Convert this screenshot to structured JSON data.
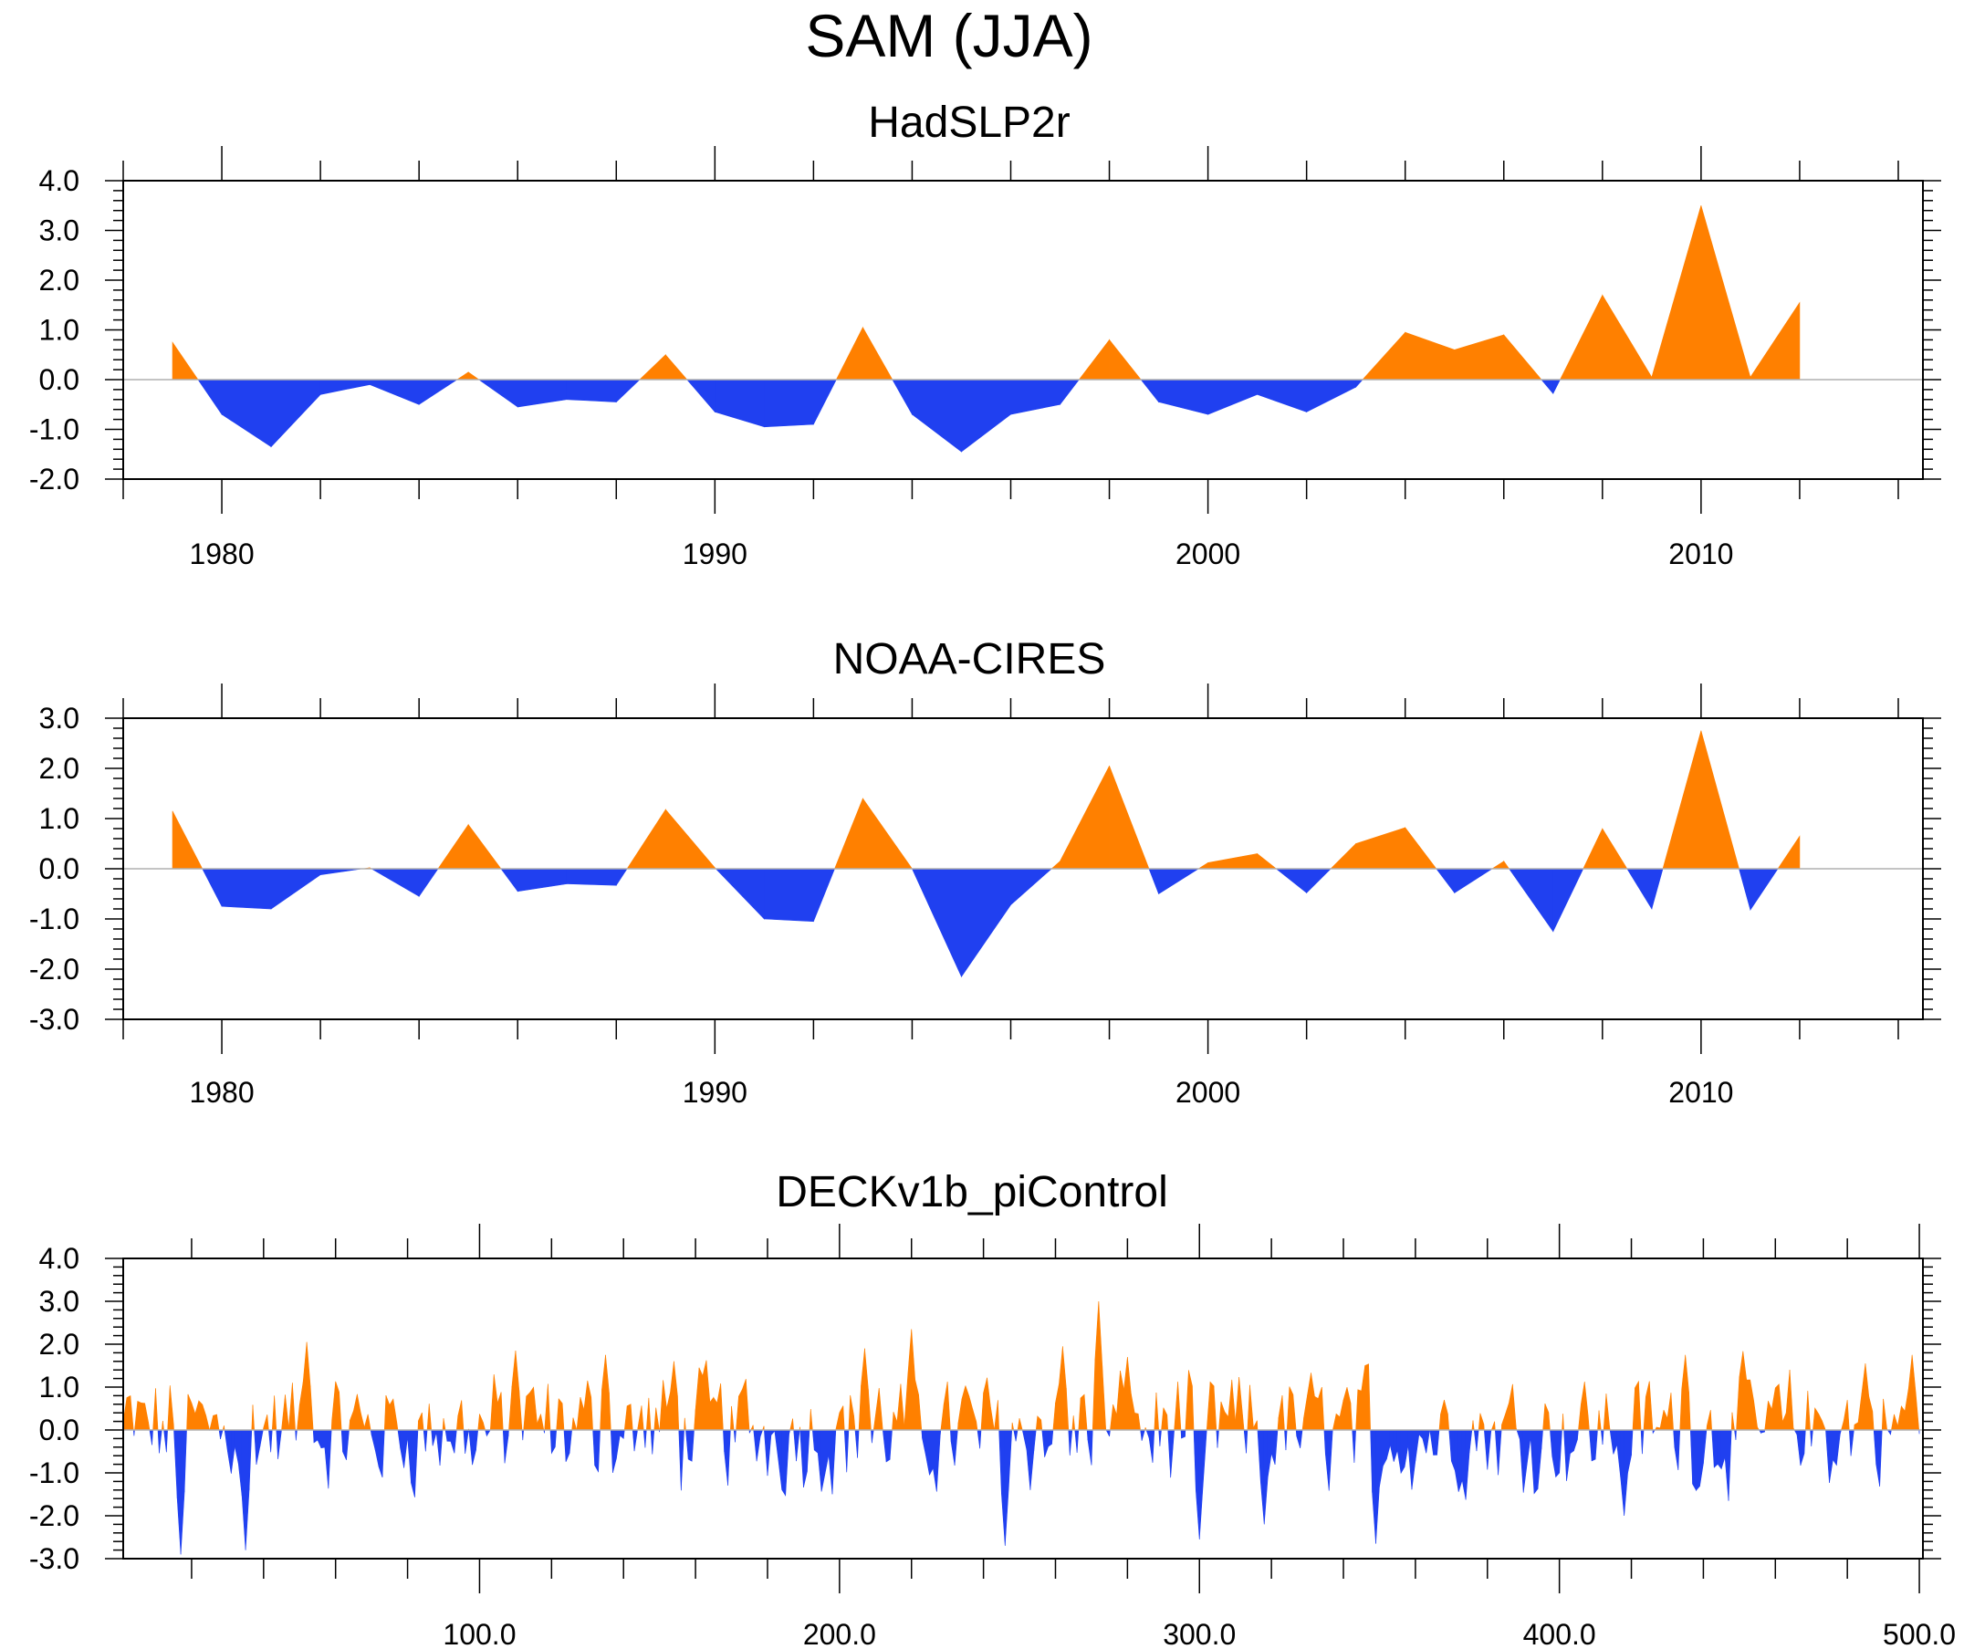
{
  "figure": {
    "title": "SAM (JJA)"
  },
  "colors": {
    "positive": "#ff8000",
    "negative": "#2040f0",
    "axis": "#000000",
    "zero_line": "#b0b0b0"
  },
  "chart_data": [
    {
      "type": "area",
      "title": "HadSLP2r",
      "xlabel": "",
      "ylabel": "",
      "xlim": [
        1978.0,
        2014.5
      ],
      "ylim": [
        -2.0,
        4.0
      ],
      "x_major_ticks": [
        1980,
        1990,
        2000,
        2010
      ],
      "x_tick_labels": [
        "1980",
        "1990",
        "2000",
        "2010"
      ],
      "y_major_ticks": [
        -2.0,
        -1.0,
        0.0,
        1.0,
        2.0,
        3.0,
        4.0
      ],
      "y_tick_labels": [
        "-2.0",
        "-1.0",
        "0.0",
        "1.0",
        "2.0",
        "3.0",
        "4.0"
      ],
      "x": [
        1979,
        1980,
        1981,
        1982,
        1983,
        1984,
        1985,
        1986,
        1987,
        1988,
        1989,
        1990,
        1991,
        1992,
        1993,
        1994,
        1995,
        1996,
        1997,
        1998,
        1999,
        2000,
        2001,
        2002,
        2003,
        2004,
        2005,
        2006,
        2007,
        2008,
        2009,
        2010,
        2011,
        2012
      ],
      "values": [
        0.75,
        -0.7,
        -1.35,
        -0.3,
        -0.1,
        -0.5,
        0.15,
        -0.55,
        -0.4,
        -0.45,
        0.5,
        -0.65,
        -0.95,
        -0.9,
        1.05,
        -0.7,
        -1.45,
        -0.7,
        -0.5,
        0.8,
        -0.45,
        -0.7,
        -0.3,
        -0.65,
        -0.15,
        0.95,
        0.6,
        0.9,
        -0.28,
        1.7,
        0.05,
        3.5,
        0.05,
        1.55
      ]
    },
    {
      "type": "area",
      "title": "NOAA-CIRES",
      "xlabel": "",
      "ylabel": "",
      "xlim": [
        1978.0,
        2014.5
      ],
      "ylim": [
        -3.0,
        3.0
      ],
      "x_major_ticks": [
        1980,
        1990,
        2000,
        2010
      ],
      "x_tick_labels": [
        "1980",
        "1990",
        "2000",
        "2010"
      ],
      "y_major_ticks": [
        -3.0,
        -2.0,
        -1.0,
        0.0,
        1.0,
        2.0,
        3.0
      ],
      "y_tick_labels": [
        "-3.0",
        "-2.0",
        "-1.0",
        "0.0",
        "1.0",
        "2.0",
        "3.0"
      ],
      "x": [
        1979,
        1980,
        1981,
        1982,
        1983,
        1984,
        1985,
        1986,
        1987,
        1988,
        1989,
        1990,
        1991,
        1992,
        1993,
        1994,
        1995,
        1996,
        1997,
        1998,
        1999,
        2000,
        2001,
        2002,
        2003,
        2004,
        2005,
        2006,
        2007,
        2008,
        2009,
        2010,
        2011,
        2012
      ],
      "values": [
        1.15,
        -0.75,
        -0.8,
        -0.12,
        0.02,
        -0.55,
        0.88,
        -0.45,
        -0.3,
        -0.33,
        1.18,
        0.02,
        -1.0,
        -1.05,
        1.4,
        0.0,
        -2.15,
        -0.72,
        0.15,
        2.05,
        -0.5,
        0.12,
        0.3,
        -0.48,
        0.5,
        0.82,
        -0.48,
        0.15,
        -1.25,
        0.8,
        -0.8,
        2.75,
        -0.82,
        0.65
      ]
    },
    {
      "type": "area",
      "title": "DECKv1b_piControl",
      "xlabel": "",
      "ylabel": "",
      "xlim": [
        1,
        501
      ],
      "ylim": [
        -3.0,
        4.0
      ],
      "x_major_ticks": [
        100.0,
        200.0,
        300.0,
        400.0,
        500.0
      ],
      "x_tick_labels": [
        "100.0",
        "200.0",
        "300.0",
        "400.0",
        "500.0"
      ],
      "y_major_ticks": [
        -3.0,
        -2.0,
        -1.0,
        0.0,
        1.0,
        2.0,
        3.0,
        4.0
      ],
      "y_tick_labels": [
        "-3.0",
        "-2.0",
        "-1.0",
        "0.0",
        "1.0",
        "2.0",
        "3.0",
        "4.0"
      ],
      "x_start": 1,
      "x_step": 1,
      "n_points": 500,
      "noise_description": "500-year control run index, values roughly between -2.8 and 3.0 (estimated series)",
      "peaks": [
        {
          "x": 17,
          "v": -2.9
        },
        {
          "x": 35,
          "v": -2.8
        },
        {
          "x": 52,
          "v": 2.05
        },
        {
          "x": 110,
          "v": 1.85
        },
        {
          "x": 135,
          "v": 1.75
        },
        {
          "x": 154,
          "v": 1.6
        },
        {
          "x": 207,
          "v": 1.9
        },
        {
          "x": 220,
          "v": 2.35
        },
        {
          "x": 246,
          "v": -2.7
        },
        {
          "x": 262,
          "v": 1.95
        },
        {
          "x": 272,
          "v": 3.0
        },
        {
          "x": 280,
          "v": 1.7
        },
        {
          "x": 300,
          "v": -2.55
        },
        {
          "x": 318,
          "v": -2.2
        },
        {
          "x": 349,
          "v": -2.65
        },
        {
          "x": 418,
          "v": -2.0
        },
        {
          "x": 435,
          "v": 1.75
        },
        {
          "x": 485,
          "v": 1.55
        },
        {
          "x": 498,
          "v": 1.75
        }
      ]
    }
  ]
}
